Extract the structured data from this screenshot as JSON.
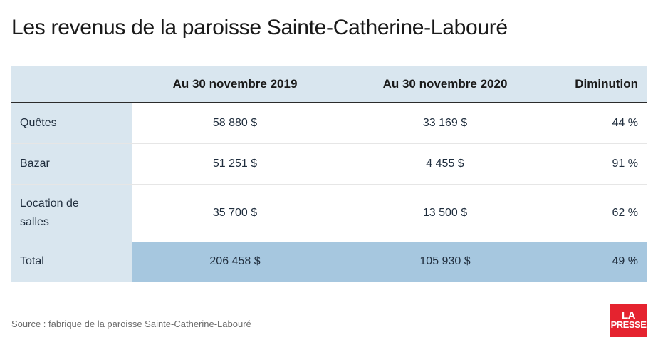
{
  "title": "Les revenus de la paroisse Sainte-Catherine-Labouré",
  "chart_data": {
    "type": "table",
    "title": "Les revenus de la paroisse Sainte-Catherine-Labouré",
    "columns": [
      "",
      "Au 30 novembre 2019",
      "Au 30 novembre 2020",
      "Diminution"
    ],
    "rows": [
      {
        "label": "Quêtes",
        "v2019": "58 880 $",
        "v2020": "33 169 $",
        "diminution": "44 %"
      },
      {
        "label": "Bazar",
        "v2019": "51 251 $",
        "v2020": "4 455 $",
        "diminution": "91 %"
      },
      {
        "label": "Location de salles",
        "v2019": "35 700 $",
        "v2020": "13 500 $",
        "diminution": "62 %"
      },
      {
        "label": "Total",
        "v2019": "206 458 $",
        "v2020": "105 930 $",
        "diminution": "49 %"
      }
    ]
  },
  "source": "Source : fabrique de la paroisse Sainte-Catherine-Labouré",
  "logo": {
    "line1": "LA",
    "line2": "PRESSE"
  },
  "colors": {
    "header_bg": "#d9e6ef",
    "label_bg": "#d9e6ef",
    "total_highlight": "#a6c7df",
    "logo_red": "#e5232f"
  }
}
